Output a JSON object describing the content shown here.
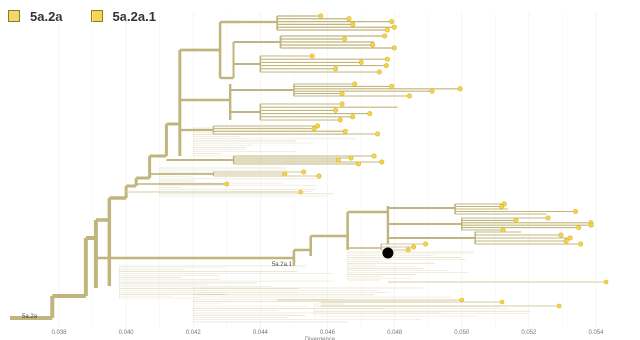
{
  "legend": {
    "items": [
      {
        "label": "5a.2a",
        "color": "#f2d56b"
      },
      {
        "label": "5a.2a.1",
        "color": "#f7d84a"
      }
    ]
  },
  "chart_data": {
    "type": "phylogenetic-tree",
    "x_axis": {
      "label": "Divergence",
      "ticks": [
        "0.038",
        "0.040",
        "0.042",
        "0.044",
        "0.046",
        "0.048",
        "0.050",
        "0.052",
        "0.054"
      ],
      "range": [
        0.0368,
        0.0554
      ]
    },
    "clade_labels": [
      "5a.2a",
      "5a.2a.1"
    ],
    "selected_node": {
      "divergence": 0.0478
    },
    "colors": {
      "branch_main": "#c0b57c",
      "branch_light": "#ddd6b4",
      "branch_faint": "#e9e5d2",
      "tip_fill": "#f5d547",
      "tip_stroke": "#d9b42b",
      "selected_node": "#000000",
      "grid": "#eeeeee"
    }
  }
}
